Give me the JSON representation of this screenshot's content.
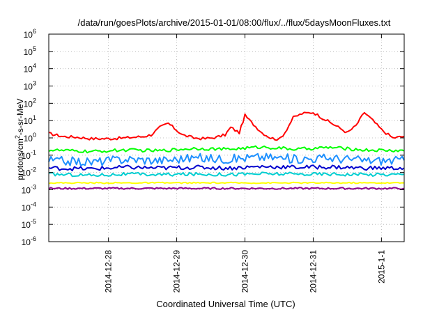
{
  "chart_data": {
    "type": "line",
    "title": "/data/run/goesPlots/archive/2015-01-01/08:00/flux/../flux/5daysMoonFluxes.txt",
    "xlabel": "Coordinated Universal Time (UTC)",
    "ylabel": {
      "prefix": "protons/cm",
      "sup": "2",
      "suffix": "-s-sr-MeV"
    },
    "yscale": "log",
    "ylim": [
      1e-06,
      1000000.0
    ],
    "yticks": [
      {
        "value": 1e-06,
        "base": "10",
        "exp": "-6"
      },
      {
        "value": 1e-05,
        "base": "10",
        "exp": "-5"
      },
      {
        "value": 0.0001,
        "base": "10",
        "exp": "-4"
      },
      {
        "value": 0.001,
        "base": "10",
        "exp": "-3"
      },
      {
        "value": 0.01,
        "base": "10",
        "exp": "-2"
      },
      {
        "value": 0.1,
        "base": "10",
        "exp": "-1"
      },
      {
        "value": 1.0,
        "base": "10",
        "exp": "0"
      },
      {
        "value": 10.0,
        "base": "10",
        "exp": "1"
      },
      {
        "value": 100.0,
        "base": "10",
        "exp": "2"
      },
      {
        "value": 1000.0,
        "base": "10",
        "exp": "3"
      },
      {
        "value": 10000.0,
        "base": "10",
        "exp": "4"
      },
      {
        "value": 100000.0,
        "base": "10",
        "exp": "5"
      },
      {
        "value": 1000000.0,
        "base": "10",
        "exp": "6"
      }
    ],
    "xlim": [
      "2014-12-27 03:00",
      "2015-01-01 08:00"
    ],
    "xticks": [
      {
        "value": "2014-12-28 00:00",
        "label": "2014-12-28"
      },
      {
        "value": "2014-12-29 00:00",
        "label": "2014-12-29"
      },
      {
        "value": "2014-12-30 00:00",
        "label": "2014-12-30"
      },
      {
        "value": "2014-12-31 00:00",
        "label": "2014-12-31"
      },
      {
        "value": "2015-01-01 00:00",
        "label": "2015-1-1"
      }
    ],
    "grid": true,
    "series": [
      {
        "color": "#ff0000",
        "x": [
          "2014-12-27 03:00",
          "2014-12-27 08:00",
          "2014-12-27 13:00",
          "2014-12-27 18:00",
          "2014-12-28 00:00",
          "2014-12-28 06:00",
          "2014-12-28 12:00",
          "2014-12-28 15:00",
          "2014-12-28 18:00",
          "2014-12-28 21:00",
          "2014-12-29 02:00",
          "2014-12-29 06:00",
          "2014-12-29 10:00",
          "2014-12-29 14:00",
          "2014-12-29 17:00",
          "2014-12-29 19:00",
          "2014-12-29 22:00",
          "2014-12-30 00:00",
          "2014-12-30 03:00",
          "2014-12-30 06:00",
          "2014-12-30 09:00",
          "2014-12-30 12:00",
          "2014-12-30 14:00",
          "2014-12-30 17:00",
          "2014-12-30 20:00",
          "2014-12-31 00:00",
          "2014-12-31 03:00",
          "2014-12-31 08:00",
          "2014-12-31 12:00",
          "2014-12-31 15:00",
          "2014-12-31 18:00",
          "2014-12-31 21:00",
          "2015-01-01 00:00",
          "2015-01-01 04:00",
          "2015-01-01 08:00"
        ],
        "y": [
          1.8,
          1.2,
          1.1,
          0.9,
          0.9,
          1.0,
          1.2,
          1.5,
          4.0,
          7.0,
          1.5,
          1.0,
          0.9,
          1.1,
          1.5,
          4.0,
          2.0,
          20,
          6.0,
          2.0,
          1.0,
          0.8,
          2.0,
          15,
          25,
          30,
          15,
          5.0,
          2.0,
          5.0,
          30,
          10,
          3.0,
          1.0,
          1.2
        ]
      },
      {
        "color": "#00ff00",
        "x": [
          "2014-12-27 03:00",
          "2014-12-27 18:00",
          "2014-12-28 06:00",
          "2014-12-28 18:00",
          "2014-12-29 06:00",
          "2014-12-29 18:00",
          "2014-12-30 06:00",
          "2014-12-30 18:00",
          "2014-12-31 06:00",
          "2014-12-31 18:00",
          "2015-01-01 08:00"
        ],
        "y": [
          0.2,
          0.16,
          0.2,
          0.18,
          0.25,
          0.22,
          0.3,
          0.22,
          0.28,
          0.2,
          0.18
        ]
      },
      {
        "color": "#1e90ff",
        "x": [
          "2014-12-27 03:00",
          "2014-12-27 18:00",
          "2014-12-28 06:00",
          "2014-12-28 18:00",
          "2014-12-29 06:00",
          "2014-12-29 18:00",
          "2014-12-30 06:00",
          "2014-12-30 18:00",
          "2014-12-31 06:00",
          "2014-12-31 18:00",
          "2015-01-01 08:00"
        ],
        "y": [
          0.05,
          0.04,
          0.06,
          0.05,
          0.07,
          0.06,
          0.08,
          0.06,
          0.07,
          0.05,
          0.05
        ]
      },
      {
        "color": "#0000cd",
        "x": [
          "2014-12-27 03:00",
          "2014-12-27 18:00",
          "2014-12-28 06:00",
          "2014-12-28 18:00",
          "2014-12-29 06:00",
          "2014-12-29 18:00",
          "2014-12-30 06:00",
          "2014-12-30 18:00",
          "2014-12-31 06:00",
          "2014-12-31 18:00",
          "2015-01-01 08:00"
        ],
        "y": [
          0.018,
          0.016,
          0.02,
          0.018,
          0.02,
          0.018,
          0.022,
          0.02,
          0.021,
          0.018,
          0.018
        ]
      },
      {
        "color": "#00ced1",
        "x": [
          "2014-12-27 03:00",
          "2014-12-27 18:00",
          "2014-12-28 06:00",
          "2014-12-28 18:00",
          "2014-12-29 06:00",
          "2014-12-29 18:00",
          "2014-12-30 06:00",
          "2014-12-30 18:00",
          "2014-12-31 06:00",
          "2014-12-31 18:00",
          "2015-01-01 08:00"
        ],
        "y": [
          0.008,
          0.007,
          0.008,
          0.0075,
          0.008,
          0.0078,
          0.0085,
          0.008,
          0.0082,
          0.0076,
          0.0078
        ]
      },
      {
        "color": "#ffff00",
        "x": [
          "2014-12-27 03:00",
          "2014-12-28 06:00",
          "2014-12-29 06:00",
          "2014-12-30 06:00",
          "2014-12-31 06:00",
          "2015-01-01 08:00"
        ],
        "y": [
          0.0025,
          0.0025,
          0.0025,
          0.0025,
          0.0025,
          0.0025
        ]
      },
      {
        "color": "#8b008b",
        "x": [
          "2014-12-27 03:00",
          "2014-12-28 06:00",
          "2014-12-29 06:00",
          "2014-12-30 06:00",
          "2014-12-31 06:00",
          "2015-01-01 08:00"
        ],
        "y": [
          0.0012,
          0.0012,
          0.0012,
          0.0012,
          0.0012,
          0.0012
        ]
      }
    ]
  }
}
